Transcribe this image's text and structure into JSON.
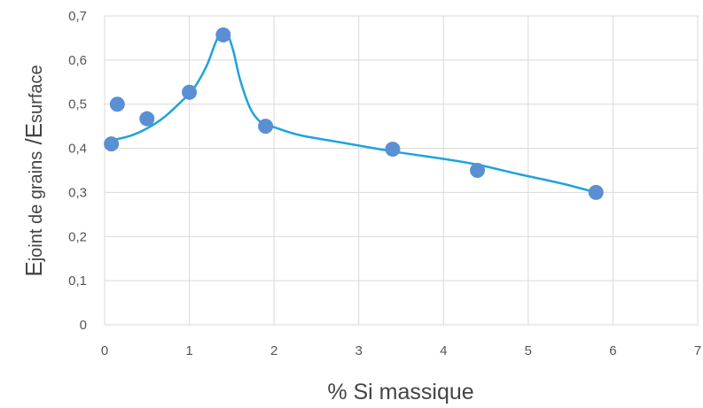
{
  "chart_data": {
    "type": "scatter",
    "title": "",
    "xlabel": "% Si massique",
    "ylabel": {
      "e1": "E",
      "sub1": "joint de grains",
      "sep": " /",
      "e2": "E",
      "sub2": "surface"
    },
    "xlim": [
      0,
      7
    ],
    "ylim": [
      0,
      0.7
    ],
    "x_ticks": [
      "0",
      "1",
      "2",
      "3",
      "4",
      "5",
      "6",
      "7"
    ],
    "y_ticks": [
      "0",
      "0,1",
      "0,2",
      "0,3",
      "0,4",
      "0,5",
      "0,6",
      "0,7"
    ],
    "grid": true,
    "legend": "none",
    "series": [
      {
        "kind": "points",
        "color": "#5b8fd4",
        "x": [
          0.08,
          0.15,
          0.5,
          1.0,
          1.4,
          1.9,
          3.4,
          4.4,
          5.8
        ],
        "y": [
          0.41,
          0.5,
          0.467,
          0.527,
          0.657,
          0.45,
          0.398,
          0.35,
          0.3
        ]
      },
      {
        "kind": "fit-curve",
        "color": "#1fa3dc",
        "x": [
          0.08,
          0.3,
          0.5,
          0.7,
          0.9,
          1.05,
          1.2,
          1.3,
          1.36,
          1.4,
          1.45,
          1.52,
          1.6,
          1.72,
          1.85,
          2.0,
          2.3,
          2.8,
          3.4,
          4.0,
          4.4,
          4.9,
          5.4,
          5.8
        ],
        "y": [
          0.418,
          0.428,
          0.445,
          0.47,
          0.505,
          0.535,
          0.585,
          0.635,
          0.66,
          0.668,
          0.66,
          0.62,
          0.555,
          0.49,
          0.458,
          0.448,
          0.43,
          0.413,
          0.393,
          0.376,
          0.363,
          0.341,
          0.32,
          0.3
        ]
      }
    ]
  }
}
